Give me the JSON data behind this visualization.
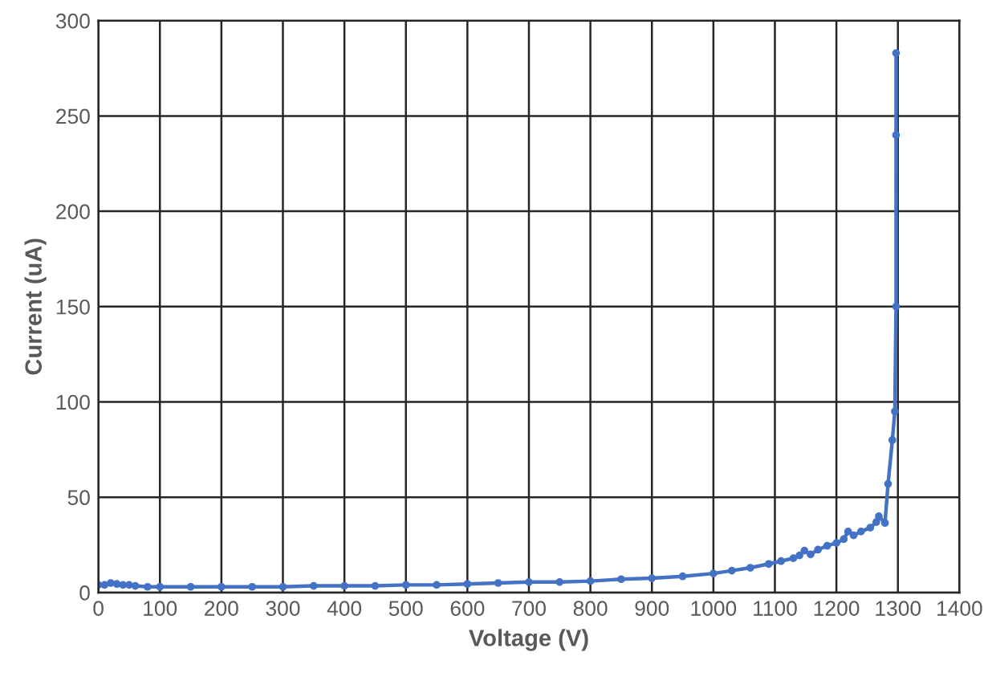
{
  "chart_data": {
    "type": "line",
    "xlabel": "Voltage (V)",
    "ylabel": "Current (uA)",
    "xlim": [
      0,
      1400
    ],
    "xticks": [
      0,
      100,
      200,
      300,
      400,
      500,
      600,
      700,
      800,
      900,
      1000,
      1100,
      1200,
      1300,
      1400
    ],
    "ylim": [
      0,
      300
    ],
    "yticks": [
      0,
      50,
      100,
      150,
      200,
      250,
      300
    ],
    "grid": true,
    "marker": "circle",
    "line_style": "solid",
    "series": [
      {
        "color": "#4472c4",
        "x": [
          0,
          10,
          20,
          30,
          40,
          50,
          60,
          80,
          100,
          150,
          200,
          250,
          300,
          350,
          400,
          450,
          500,
          550,
          600,
          650,
          700,
          750,
          800,
          850,
          900,
          950,
          1000,
          1030,
          1060,
          1090,
          1110,
          1130,
          1140,
          1148,
          1158,
          1170,
          1185,
          1200,
          1212,
          1219,
          1228,
          1240,
          1255,
          1265,
          1269,
          1279,
          1284,
          1291,
          1295,
          1297,
          1297,
          1297
        ],
        "values": [
          4,
          4,
          5,
          4.5,
          4,
          4,
          3.5,
          3,
          3,
          3,
          3,
          3,
          3,
          3.5,
          3.5,
          3.5,
          4,
          4,
          4.5,
          5,
          5.5,
          5.5,
          6,
          7,
          7.5,
          8.5,
          10,
          11.5,
          13,
          15,
          16.5,
          18,
          19.5,
          22,
          20,
          22.5,
          24.5,
          26,
          28,
          32,
          30,
          32,
          34,
          37,
          40,
          36.5,
          57,
          80,
          95,
          150,
          240,
          283
        ]
      }
    ]
  }
}
